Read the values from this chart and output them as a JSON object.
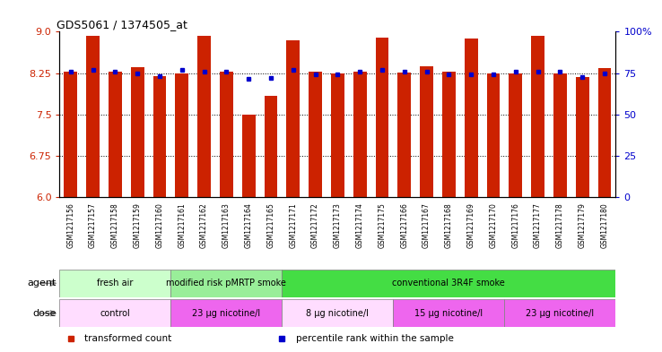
{
  "title": "GDS5061 / 1374505_at",
  "samples": [
    "GSM1217156",
    "GSM1217157",
    "GSM1217158",
    "GSM1217159",
    "GSM1217160",
    "GSM1217161",
    "GSM1217162",
    "GSM1217163",
    "GSM1217164",
    "GSM1217165",
    "GSM1217171",
    "GSM1217172",
    "GSM1217173",
    "GSM1217174",
    "GSM1217175",
    "GSM1217166",
    "GSM1217167",
    "GSM1217168",
    "GSM1217169",
    "GSM1217170",
    "GSM1217176",
    "GSM1217177",
    "GSM1217178",
    "GSM1217179",
    "GSM1217180"
  ],
  "bar_values": [
    8.28,
    8.93,
    8.28,
    8.36,
    8.19,
    8.25,
    8.93,
    8.28,
    7.5,
    7.84,
    8.85,
    8.28,
    8.25,
    8.28,
    8.9,
    8.26,
    8.37,
    8.27,
    8.88,
    8.25,
    8.25,
    8.93,
    8.25,
    8.18,
    8.34
  ],
  "percentile_values": [
    8.28,
    8.3,
    8.27,
    8.24,
    8.19,
    8.3,
    8.28,
    8.28,
    8.15,
    8.16,
    8.3,
    8.22,
    8.22,
    8.28,
    8.3,
    8.28,
    8.27,
    8.23,
    8.22,
    8.23,
    8.28,
    8.28,
    8.27,
    8.18,
    8.25
  ],
  "ylim": [
    6.0,
    9.0
  ],
  "yticks_left": [
    6.0,
    6.75,
    7.5,
    8.25,
    9.0
  ],
  "yticks_right": [
    0,
    25,
    50,
    75,
    100
  ],
  "yticks_right_labels": [
    "0",
    "25",
    "50",
    "75",
    "100%"
  ],
  "hlines": [
    6.75,
    7.5,
    8.25
  ],
  "bar_color": "#cc2200",
  "percentile_color": "#0000cc",
  "bar_width": 0.6,
  "agent_groups": [
    {
      "label": "fresh air",
      "start": 0,
      "end": 4,
      "color": "#ccffcc"
    },
    {
      "label": "modified risk pMRTP smoke",
      "start": 5,
      "end": 9,
      "color": "#99ee99"
    },
    {
      "label": "conventional 3R4F smoke",
      "start": 10,
      "end": 24,
      "color": "#44dd44"
    }
  ],
  "dose_groups": [
    {
      "label": "control",
      "start": 0,
      "end": 4,
      "color": "#ffddff"
    },
    {
      "label": "23 µg nicotine/l",
      "start": 5,
      "end": 9,
      "color": "#ee66ee"
    },
    {
      "label": "8 µg nicotine/l",
      "start": 10,
      "end": 14,
      "color": "#ffddff"
    },
    {
      "label": "15 µg nicotine/l",
      "start": 15,
      "end": 19,
      "color": "#ee66ee"
    },
    {
      "label": "23 µg nicotine/l",
      "start": 20,
      "end": 24,
      "color": "#ee66ee"
    }
  ],
  "legend_items": [
    {
      "label": "transformed count",
      "color": "#cc2200"
    },
    {
      "label": "percentile rank within the sample",
      "color": "#0000cc"
    }
  ],
  "axis_label_color_left": "#cc2200",
  "axis_label_color_right": "#0000cc",
  "plot_bg": "#ffffff",
  "xlabel_bg": "#dddddd"
}
